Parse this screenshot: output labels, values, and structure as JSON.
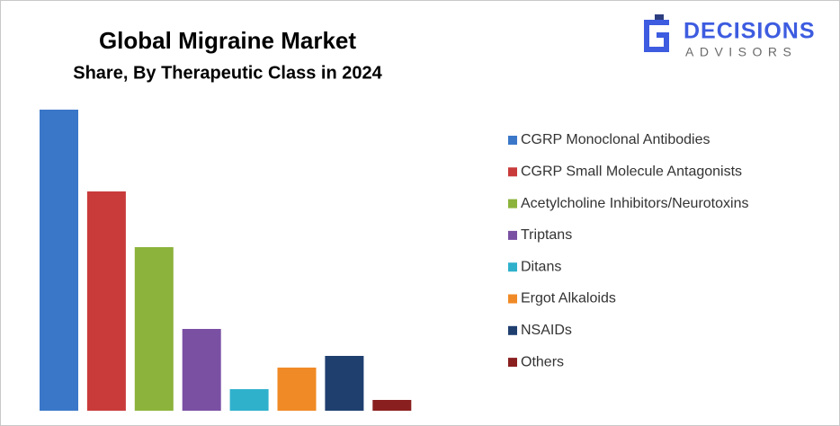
{
  "chart_data": {
    "type": "bar",
    "title": "Global Migraine Market",
    "subtitle": "Share, By Therapeutic Class in 2024",
    "categories": [
      "CGRP Monoclonal Antibodies",
      "CGRP Small Molecule Antagonists",
      "Acetylcholine Inhibitors/Neurotoxins",
      "Triptans",
      "Ditans",
      "Ergot Alkaloids",
      "NSAIDs",
      "Others"
    ],
    "values": [
      33.5,
      24.4,
      18.2,
      9.1,
      2.4,
      4.8,
      6.1,
      1.2
    ],
    "colors": [
      "#3a77c8",
      "#c93b3b",
      "#8cb33c",
      "#7a50a3",
      "#2fb1cc",
      "#f08a26",
      "#1f3f6f",
      "#8a1f1f"
    ],
    "ylim": [
      0,
      33.5
    ],
    "legend": "right"
  },
  "logo": {
    "name": "DECISIONS",
    "tagline": "ADVISORS"
  }
}
